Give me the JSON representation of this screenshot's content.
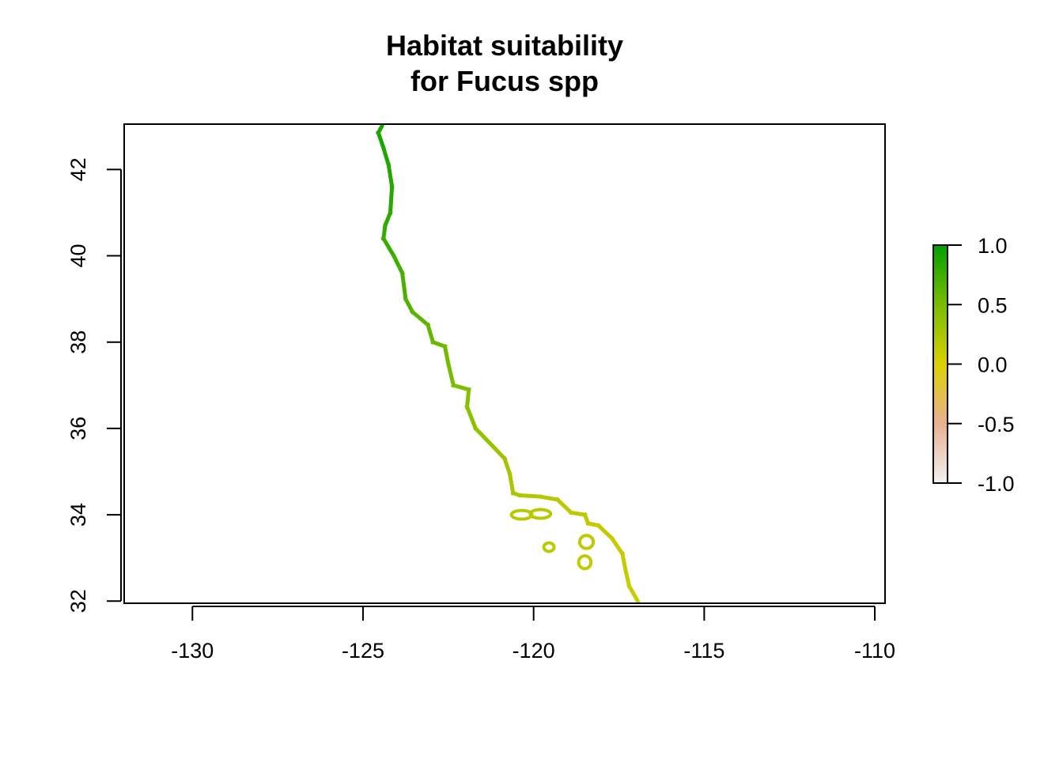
{
  "title": [
    "Habitat suitability",
    "for Fucus spp"
  ],
  "chart_data": {
    "type": "heatmap",
    "title": "Habitat suitability for Fucus spp",
    "xlabel": "",
    "ylabel": "",
    "xlim": [
      -132,
      -109.7
    ],
    "ylim": [
      31.95,
      43.05
    ],
    "x_ticks": [
      -130,
      -125,
      -120,
      -115,
      -110
    ],
    "y_ticks": [
      32,
      34,
      36,
      38,
      40,
      42
    ],
    "x_tick_labels": [
      "-130",
      "-125",
      "-120",
      "-115",
      "-110"
    ],
    "y_tick_labels": [
      "32",
      "34",
      "36",
      "38",
      "40",
      "42"
    ],
    "legend": {
      "placement": "right",
      "range": [
        -1.0,
        1.0
      ],
      "ticks": [
        1.0,
        0.5,
        0.0,
        -0.5,
        -1.0
      ],
      "tick_labels": [
        "1.0",
        "0.5",
        "0.0",
        "-0.5",
        "-1.0"
      ],
      "color_stops": [
        {
          "value": -1.0,
          "color": "#f2f2f2"
        },
        {
          "value": -0.5,
          "color": "#e8b090"
        },
        {
          "value": 0.0,
          "color": "#dcd000"
        },
        {
          "value": 0.5,
          "color": "#78bc00"
        },
        {
          "value": 1.0,
          "color": "#00a000"
        }
      ]
    },
    "coastline": [
      {
        "lon": -124.45,
        "lat": 43.0,
        "value": 0.9
      },
      {
        "lon": -124.55,
        "lat": 42.85,
        "value": 0.9
      },
      {
        "lon": -124.4,
        "lat": 42.5,
        "value": 0.88
      },
      {
        "lon": -124.25,
        "lat": 42.1,
        "value": 0.86
      },
      {
        "lon": -124.15,
        "lat": 41.6,
        "value": 0.85
      },
      {
        "lon": -124.2,
        "lat": 41.0,
        "value": 0.83
      },
      {
        "lon": -124.35,
        "lat": 40.7,
        "value": 0.8
      },
      {
        "lon": -124.4,
        "lat": 40.4,
        "value": 0.78
      },
      {
        "lon": -124.1,
        "lat": 40.0,
        "value": 0.75
      },
      {
        "lon": -123.85,
        "lat": 39.6,
        "value": 0.72
      },
      {
        "lon": -123.75,
        "lat": 39.0,
        "value": 0.68
      },
      {
        "lon": -123.55,
        "lat": 38.7,
        "value": 0.65
      },
      {
        "lon": -123.1,
        "lat": 38.4,
        "value": 0.6
      },
      {
        "lon": -122.95,
        "lat": 38.0,
        "value": 0.57
      },
      {
        "lon": -122.6,
        "lat": 37.9,
        "value": 0.55
      },
      {
        "lon": -122.5,
        "lat": 37.5,
        "value": 0.52
      },
      {
        "lon": -122.35,
        "lat": 37.0,
        "value": 0.48
      },
      {
        "lon": -121.9,
        "lat": 36.9,
        "value": 0.45
      },
      {
        "lon": -121.95,
        "lat": 36.5,
        "value": 0.42
      },
      {
        "lon": -121.7,
        "lat": 36.0,
        "value": 0.38
      },
      {
        "lon": -121.15,
        "lat": 35.55,
        "value": 0.33
      },
      {
        "lon": -120.85,
        "lat": 35.3,
        "value": 0.3
      },
      {
        "lon": -120.7,
        "lat": 34.95,
        "value": 0.27
      },
      {
        "lon": -120.6,
        "lat": 34.5,
        "value": 0.24
      },
      {
        "lon": -120.4,
        "lat": 34.45,
        "value": 0.22
      },
      {
        "lon": -119.8,
        "lat": 34.42,
        "value": 0.2
      },
      {
        "lon": -119.3,
        "lat": 34.35,
        "value": 0.18
      },
      {
        "lon": -118.9,
        "lat": 34.05,
        "value": 0.16
      },
      {
        "lon": -118.5,
        "lat": 34.0,
        "value": 0.15
      },
      {
        "lon": -118.4,
        "lat": 33.8,
        "value": 0.14
      },
      {
        "lon": -118.1,
        "lat": 33.75,
        "value": 0.13
      },
      {
        "lon": -117.7,
        "lat": 33.45,
        "value": 0.12
      },
      {
        "lon": -117.4,
        "lat": 33.1,
        "value": 0.12
      },
      {
        "lon": -117.3,
        "lat": 32.7,
        "value": 0.11
      },
      {
        "lon": -117.2,
        "lat": 32.35,
        "value": 0.1
      },
      {
        "lon": -116.95,
        "lat": 32.0,
        "value": 0.1
      }
    ],
    "islands": [
      {
        "lon": -120.35,
        "lat": 34.0,
        "rx": 0.3,
        "ry": 0.1,
        "value": 0.18
      },
      {
        "lon": -119.8,
        "lat": 34.02,
        "rx": 0.3,
        "ry": 0.1,
        "value": 0.18
      },
      {
        "lon": -119.55,
        "lat": 33.25,
        "rx": 0.15,
        "ry": 0.1,
        "value": 0.15
      },
      {
        "lon": -118.45,
        "lat": 33.37,
        "rx": 0.2,
        "ry": 0.15,
        "value": 0.14
      },
      {
        "lon": -118.5,
        "lat": 32.9,
        "rx": 0.18,
        "ry": 0.15,
        "value": 0.13
      }
    ]
  }
}
